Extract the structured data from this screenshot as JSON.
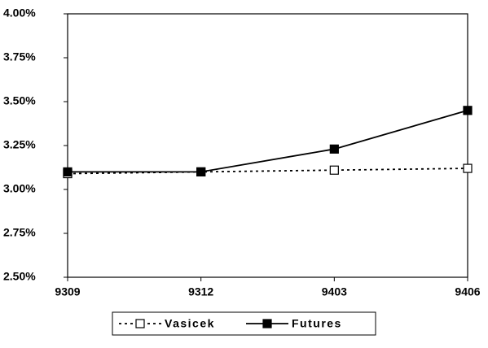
{
  "chart_data": {
    "type": "line",
    "categories": [
      "9309",
      "9312",
      "9403",
      "9406"
    ],
    "series": [
      {
        "name": "Vasicek",
        "color": "#000000",
        "style": "dashed",
        "marker": "open-square",
        "values": [
          3.09,
          3.1,
          3.11,
          3.12
        ]
      },
      {
        "name": "Futures",
        "color": "#000000",
        "style": "solid",
        "marker": "filled-square",
        "values": [
          3.1,
          3.1,
          3.23,
          3.45
        ]
      }
    ],
    "ylim": [
      2.5,
      4.0
    ],
    "yticks": [
      {
        "value": 2.5,
        "label": "2.50%"
      },
      {
        "value": 2.75,
        "label": "2.75%"
      },
      {
        "value": 3.0,
        "label": "3.00%"
      },
      {
        "value": 3.25,
        "label": "3.25%"
      },
      {
        "value": 3.5,
        "label": "3.50%"
      },
      {
        "value": 3.75,
        "label": "3.75%"
      },
      {
        "value": 4.0,
        "label": "4.00%"
      }
    ],
    "grid": false,
    "legend": "bottom"
  }
}
